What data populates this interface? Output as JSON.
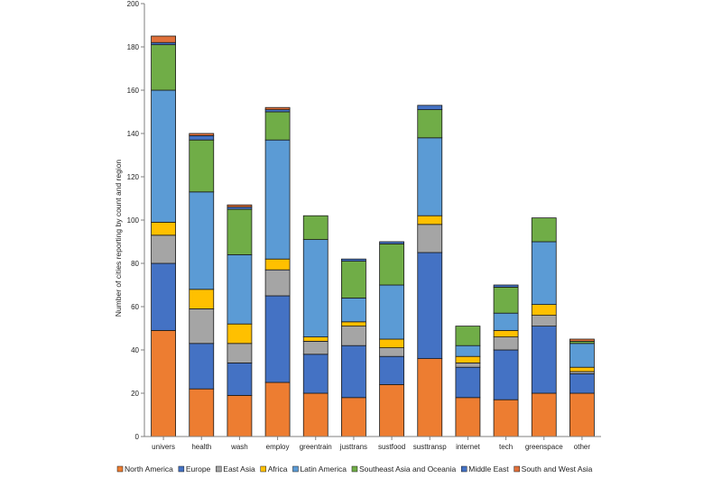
{
  "chart_data": {
    "type": "bar",
    "stacked": true,
    "title": "",
    "xlabel": "",
    "ylabel": "Number of cities reporting by count and region",
    "ylim": [
      0,
      200
    ],
    "yticks": [
      0,
      20,
      40,
      60,
      80,
      100,
      120,
      140,
      160,
      180,
      200
    ],
    "grid": false,
    "legend_position": "bottom",
    "categories": [
      "univers",
      "health",
      "wash",
      "employ",
      "greentrain",
      "justtrans",
      "sustfood",
      "susttransp",
      "internet",
      "tech",
      "greenspace",
      "other"
    ],
    "series": [
      {
        "name": "North America",
        "color": "#ED7D31",
        "values": [
          49,
          22,
          19,
          25,
          20,
          18,
          24,
          36,
          18,
          17,
          20,
          20
        ]
      },
      {
        "name": "Europe",
        "color": "#4472C4",
        "values": [
          31,
          21,
          15,
          40,
          18,
          24,
          13,
          49,
          14,
          23,
          31,
          9
        ]
      },
      {
        "name": "East Asia",
        "color": "#A5A5A5",
        "values": [
          13,
          16,
          9,
          12,
          6,
          9,
          4,
          13,
          2,
          6,
          5,
          1
        ]
      },
      {
        "name": "Africa",
        "color": "#FFC000",
        "values": [
          6,
          9,
          9,
          5,
          2,
          2,
          4,
          4,
          3,
          3,
          5,
          2
        ]
      },
      {
        "name": "Latin America",
        "color": "#5B9BD5",
        "values": [
          61,
          45,
          32,
          55,
          45,
          11,
          25,
          36,
          5,
          8,
          29,
          11
        ]
      },
      {
        "name": "Southeast Asia and Oceania",
        "color": "#70AD47",
        "values": [
          21,
          24,
          21,
          13,
          11,
          17,
          19,
          13,
          9,
          12,
          11,
          1
        ]
      },
      {
        "name": "Middle East",
        "color": "#4472C4",
        "values": [
          1,
          2,
          1,
          1,
          0,
          1,
          1,
          2,
          0,
          1,
          0,
          0
        ]
      },
      {
        "name": "South and West Asia",
        "color": "#E0703A",
        "values": [
          3,
          1,
          1,
          1,
          0,
          0,
          0,
          0,
          0,
          0,
          0,
          1
        ]
      }
    ]
  }
}
